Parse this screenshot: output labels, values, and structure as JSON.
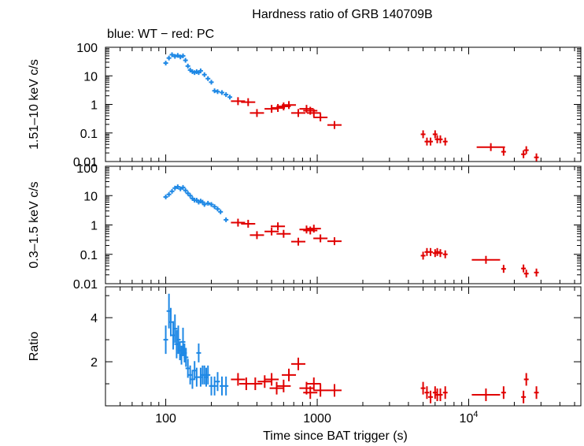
{
  "title": "Hardness ratio of GRB 140709B",
  "subtitle": "blue: WT − red: PC",
  "colors": {
    "wt": "#1e88e5",
    "pc": "#e00000",
    "axis": "#000000"
  },
  "chart_data": [
    {
      "type": "scatter",
      "name": "hard-band",
      "ylabel": "1.51–10 keV c/s",
      "yscale": "log",
      "ylim": [
        0.01,
        100
      ],
      "ytick_labels": [
        "100",
        "10",
        "1",
        "0.1",
        "0.01"
      ],
      "xscale": "log",
      "xlim": [
        40,
        55000
      ],
      "series": [
        {
          "name": "WT",
          "x": [
            100,
            105,
            110,
            115,
            120,
            125,
            130,
            135,
            140,
            145,
            150,
            155,
            160,
            165,
            170,
            180,
            190,
            200,
            210,
            220,
            235,
            250,
            265
          ],
          "y": [
            28,
            42,
            55,
            48,
            52,
            46,
            50,
            35,
            22,
            16,
            14,
            13,
            14,
            13,
            15,
            11,
            8,
            6,
            3.0,
            2.8,
            2.6,
            2.2,
            1.8
          ]
        },
        {
          "name": "PC",
          "x": [
            300,
            350,
            400,
            500,
            550,
            600,
            650,
            750,
            850,
            900,
            950,
            1050,
            1300,
            5000,
            5300,
            5600,
            6000,
            6200,
            6500,
            7000,
            14000,
            17000,
            23000,
            24000,
            28000
          ],
          "y": [
            1.3,
            1.2,
            0.5,
            0.7,
            0.75,
            0.85,
            0.95,
            0.5,
            0.7,
            0.6,
            0.5,
            0.35,
            0.19,
            0.09,
            0.05,
            0.05,
            0.09,
            0.06,
            0.06,
            0.05,
            0.032,
            0.022,
            0.018,
            0.025,
            0.014
          ]
        }
      ]
    },
    {
      "type": "scatter",
      "name": "soft-band",
      "ylabel": "0.3–1.5 keV c/s",
      "yscale": "log",
      "ylim": [
        0.01,
        100
      ],
      "ytick_labels": [
        "100",
        "10",
        "1",
        "0.1",
        "0.01"
      ],
      "xscale": "log",
      "xlim": [
        40,
        55000
      ],
      "series": [
        {
          "name": "WT",
          "x": [
            100,
            105,
            110,
            115,
            120,
            125,
            130,
            135,
            140,
            145,
            150,
            155,
            160,
            165,
            170,
            175,
            180,
            190,
            200,
            210,
            220,
            230,
            250
          ],
          "y": [
            9,
            11,
            14,
            18,
            20,
            17,
            19,
            15,
            12,
            10,
            8,
            7,
            7,
            6,
            6.5,
            6,
            5,
            5.5,
            5,
            4.2,
            3.5,
            2.8,
            1.5
          ]
        },
        {
          "name": "PC",
          "x": [
            300,
            350,
            400,
            500,
            550,
            600,
            750,
            850,
            900,
            950,
            1050,
            1300,
            5000,
            5300,
            5600,
            6000,
            6200,
            6500,
            7000,
            13000,
            17000,
            23000,
            24000,
            28000
          ],
          "y": [
            1.2,
            1.1,
            0.45,
            0.6,
            0.9,
            0.5,
            0.27,
            0.7,
            0.65,
            0.75,
            0.35,
            0.28,
            0.09,
            0.12,
            0.12,
            0.11,
            0.12,
            0.11,
            0.1,
            0.065,
            0.032,
            0.033,
            0.022,
            0.024
          ]
        }
      ]
    },
    {
      "type": "scatter",
      "name": "ratio",
      "ylabel": "Ratio",
      "yscale": "linear",
      "ylim": [
        0,
        5.4
      ],
      "ytick_labels": [
        "4",
        "2"
      ],
      "xscale": "log",
      "xlim": [
        40,
        55000
      ],
      "xlabel": "Time since BAT trigger (s)",
      "xtick_labels": [
        "100",
        "1000",
        "10"
      ],
      "xtick_superscript": "4",
      "series": [
        {
          "name": "WT",
          "x": [
            100,
            105,
            108,
            112,
            115,
            118,
            121,
            124,
            127,
            130,
            133,
            136,
            140,
            145,
            150,
            155,
            160,
            165,
            170,
            175,
            180,
            185,
            190,
            200,
            210,
            220,
            235,
            250
          ],
          "y": [
            3.0,
            4.3,
            3.8,
            3.2,
            3.5,
            2.8,
            3.0,
            2.5,
            2.3,
            2.9,
            2.4,
            2.2,
            1.7,
            1.4,
            1.2,
            1.6,
            1.3,
            2.4,
            1.3,
            1.4,
            1.4,
            1.3,
            1.4,
            0.9,
            0.9,
            1.1,
            0.9,
            0.9
          ]
        },
        {
          "name": "PC",
          "x": [
            300,
            340,
            390,
            450,
            500,
            540,
            600,
            650,
            750,
            850,
            900,
            950,
            1050,
            1300,
            5000,
            5300,
            5600,
            6000,
            6200,
            6500,
            7000,
            13000,
            17000,
            23000,
            24000,
            28000
          ],
          "y": [
            1.2,
            1.0,
            1.0,
            1.1,
            1.2,
            0.8,
            0.9,
            1.4,
            1.9,
            0.8,
            0.6,
            1.0,
            0.7,
            0.7,
            0.8,
            0.6,
            0.4,
            0.6,
            0.5,
            0.5,
            0.6,
            0.5,
            0.6,
            0.4,
            1.2,
            0.6
          ]
        }
      ]
    }
  ]
}
